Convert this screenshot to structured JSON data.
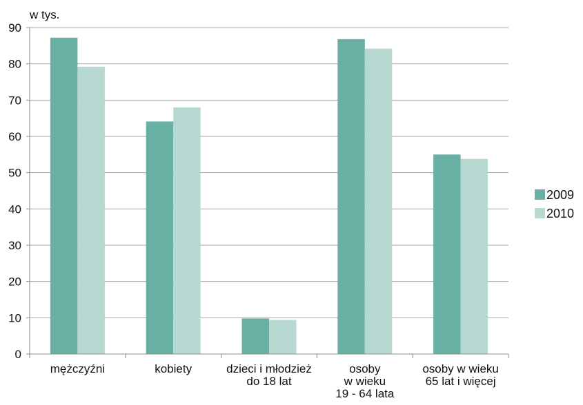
{
  "chart_data": {
    "type": "bar",
    "unit_label": "w tys.",
    "categories": [
      [
        "mężczyźni"
      ],
      [
        "kobiety"
      ],
      [
        "dzieci i młodzież",
        "do 18 lat"
      ],
      [
        "osoby",
        "w wieku",
        "19 - 64 lata"
      ],
      [
        "osoby w wieku",
        "65 lat i więcej"
      ]
    ],
    "series": [
      {
        "name": "2009",
        "color": "#68b0a3",
        "values": [
          87.2,
          64.1,
          9.8,
          86.8,
          55.0
        ]
      },
      {
        "name": "2010",
        "color": "#b8d9d2",
        "values": [
          79.2,
          68.0,
          9.4,
          84.2,
          53.8
        ]
      }
    ],
    "ylim": [
      0,
      90
    ],
    "yticks": [
      0,
      10,
      20,
      30,
      40,
      50,
      60,
      70,
      80,
      90
    ],
    "grid": true,
    "legend_position": "right"
  }
}
